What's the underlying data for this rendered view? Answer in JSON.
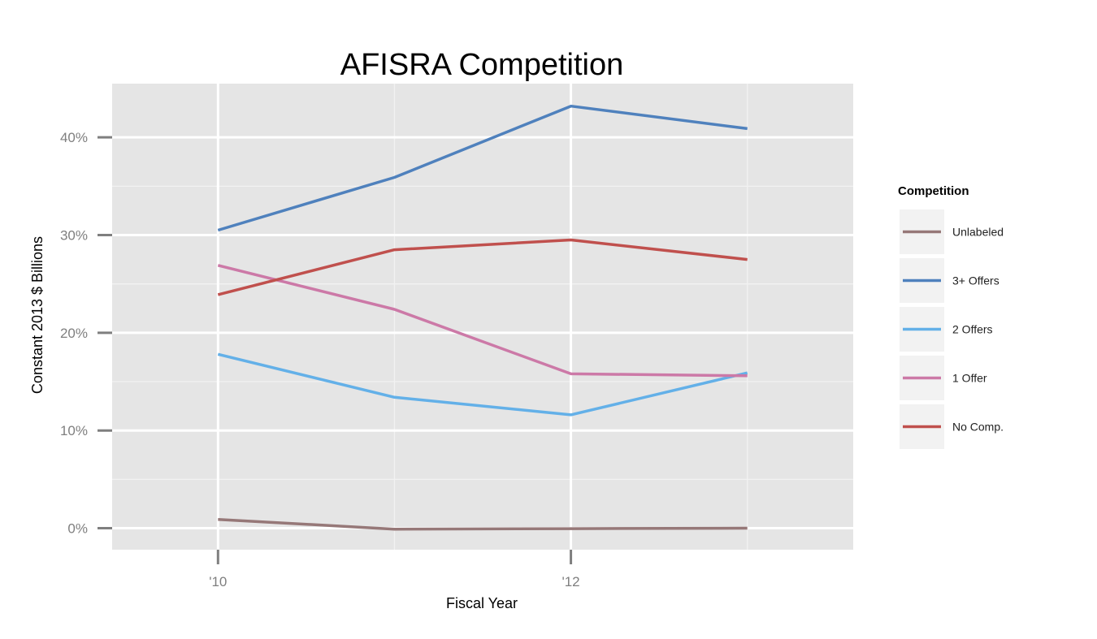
{
  "chart_data": {
    "type": "line",
    "title": "AFISRA Competition",
    "xlabel": "Fiscal Year",
    "ylabel": "Constant 2013 $ Billions",
    "x": [
      2010,
      2011,
      2012,
      2013
    ],
    "xlim": [
      2009.4,
      2013.6
    ],
    "ylim": [
      -0.022,
      0.455
    ],
    "x_ticks": [
      {
        "value": 2010,
        "label": "'10"
      },
      {
        "value": 2012,
        "label": "'12"
      }
    ],
    "y_ticks": [
      {
        "value": 0.0,
        "label": "0%"
      },
      {
        "value": 0.1,
        "label": "10%"
      },
      {
        "value": 0.2,
        "label": "20%"
      },
      {
        "value": 0.3,
        "label": "30%"
      },
      {
        "value": 0.4,
        "label": "40%"
      }
    ],
    "y_minor": [
      0.05,
      0.15,
      0.25,
      0.35
    ],
    "x_minor": [
      2011,
      2013
    ],
    "grid": true,
    "legend_title": "Competition",
    "legend_position": "right",
    "series": [
      {
        "name": "Unlabeled",
        "color": "#967878",
        "values": [
          0.009,
          -0.001,
          -0.0005,
          0.0
        ]
      },
      {
        "name": "3+ Offers",
        "color": "#4F81BD",
        "values": [
          0.305,
          0.359,
          0.432,
          0.409
        ]
      },
      {
        "name": "2 Offers",
        "color": "#63B0E8",
        "values": [
          0.178,
          0.134,
          0.116,
          0.159
        ]
      },
      {
        "name": "1 Offer",
        "color": "#CC79A7",
        "values": [
          0.269,
          0.224,
          0.158,
          0.156
        ]
      },
      {
        "name": "No Comp.",
        "color": "#C0504D",
        "values": [
          0.239,
          0.285,
          0.295,
          0.275
        ]
      }
    ]
  },
  "colors": {
    "panel_background": "#E5E5E5",
    "grid_major": "#FFFFFF",
    "grid_minor": "#F2F2F2",
    "tick_color": "#7F7F7F",
    "legend_key_background": "#F2F2F2"
  }
}
